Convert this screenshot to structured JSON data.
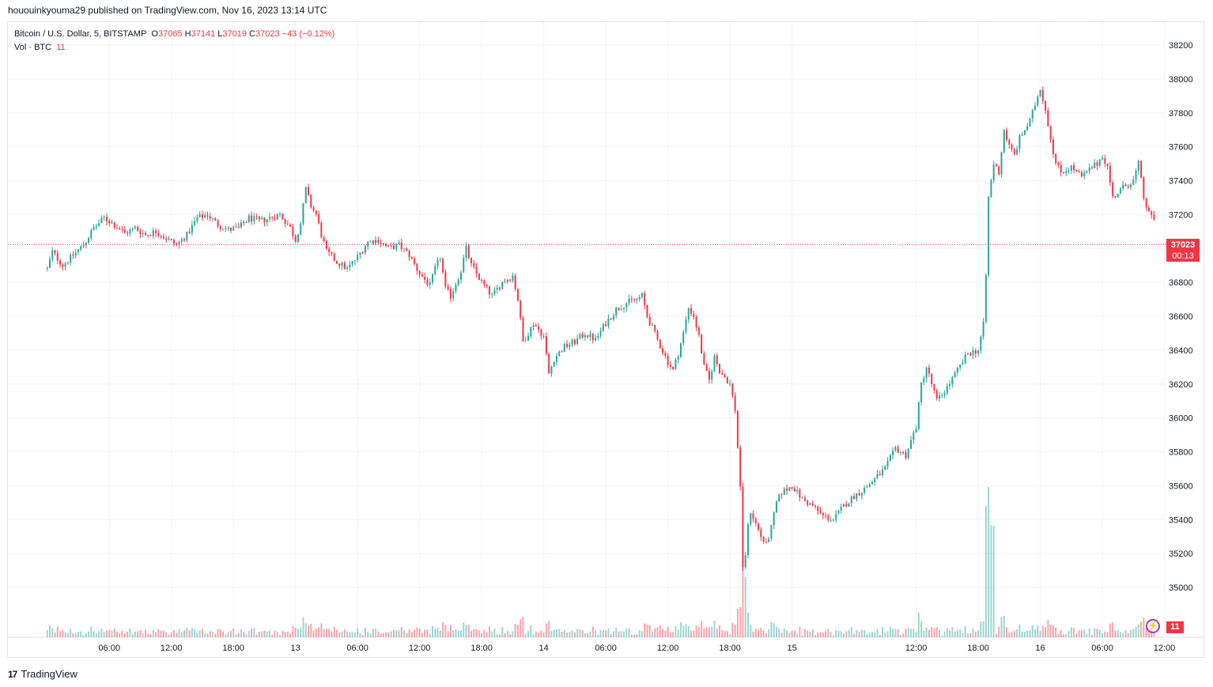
{
  "header": {
    "publisher": "hououinkyouma29 published on TradingView.com, Nov 16, 2023 13:14 UTC"
  },
  "legend": {
    "symbol": "Bitcoin / U.S. Dollar, 5, BITSTAMP",
    "o_label": "O",
    "o_value": "37065",
    "h_label": "H",
    "h_value": "37141",
    "l_label": "L",
    "l_value": "37019",
    "c_label": "C",
    "c_value": "37023",
    "change": "−43 (−0.12%)",
    "vol_label": "Vol · BTC",
    "vol_value": "11"
  },
  "last_price": {
    "price": "37023",
    "countdown": "00:13",
    "vol": "11"
  },
  "brand": {
    "name": "TradingView",
    "logo": "17"
  },
  "colors": {
    "up": "#26a69a",
    "down": "#f23645",
    "grid": "#f0f3fa",
    "axis": "#e0e3eb"
  },
  "chart_data": {
    "type": "candlestick",
    "symbol": "BTCUSD",
    "exchange": "BITSTAMP",
    "interval_minutes": 5,
    "ylim": [
      34700,
      38300
    ],
    "y_ticks": [
      35000,
      35200,
      35400,
      35600,
      35800,
      36000,
      36200,
      36400,
      36600,
      36800,
      37000,
      37200,
      37400,
      37600,
      37800,
      38000,
      38200
    ],
    "y_tick_labels": [
      "35000",
      "35200",
      "35400",
      "35600",
      "35800",
      "36000",
      "36200",
      "36400",
      "36600",
      "36800",
      "37000",
      "37200",
      "37400",
      "37600",
      "37800",
      "38000",
      "38200"
    ],
    "x_ticks": [
      {
        "label": "06:00",
        "hours": 6
      },
      {
        "label": "12:00",
        "hours": 12
      },
      {
        "label": "18:00",
        "hours": 18
      },
      {
        "label": "13",
        "hours": 24
      },
      {
        "label": "06:00",
        "hours": 30
      },
      {
        "label": "12:00",
        "hours": 36
      },
      {
        "label": "18:00",
        "hours": 42
      },
      {
        "label": "14",
        "hours": 48
      },
      {
        "label": "06:00",
        "hours": 54
      },
      {
        "label": "12:00",
        "hours": 60
      },
      {
        "label": "18:00",
        "hours": 66
      },
      {
        "label": "15",
        "hours": 72
      },
      {
        "label": "12:00",
        "hours": 84
      },
      {
        "label": "18:00",
        "hours": 90
      },
      {
        "label": "16",
        "hours": 96
      },
      {
        "label": "06:00",
        "hours": 102
      },
      {
        "label": "12:00",
        "hours": 108
      }
    ],
    "price_path": [
      [
        0.0,
        36880
      ],
      [
        0.5,
        36980
      ],
      [
        1.5,
        36900
      ],
      [
        2.5,
        36960
      ],
      [
        3.5,
        37020
      ],
      [
        4.5,
        37120
      ],
      [
        5.5,
        37180
      ],
      [
        6.5,
        37140
      ],
      [
        7.5,
        37090
      ],
      [
        8.5,
        37120
      ],
      [
        9.5,
        37080
      ],
      [
        10.5,
        37100
      ],
      [
        11.5,
        37060
      ],
      [
        12.5,
        37020
      ],
      [
        13.5,
        37080
      ],
      [
        14.5,
        37180
      ],
      [
        15.5,
        37200
      ],
      [
        16.5,
        37140
      ],
      [
        17.5,
        37110
      ],
      [
        18.5,
        37120
      ],
      [
        19.5,
        37180
      ],
      [
        20.5,
        37160
      ],
      [
        21.5,
        37180
      ],
      [
        22.5,
        37200
      ],
      [
        23.5,
        37120
      ],
      [
        24.0,
        37050
      ],
      [
        24.5,
        37150
      ],
      [
        25.0,
        37350
      ],
      [
        25.5,
        37250
      ],
      [
        26.0,
        37200
      ],
      [
        26.5,
        37080
      ],
      [
        27.0,
        36980
      ],
      [
        28.0,
        36920
      ],
      [
        29.0,
        36880
      ],
      [
        30.0,
        36950
      ],
      [
        31.0,
        37040
      ],
      [
        32.0,
        37050
      ],
      [
        33.0,
        37000
      ],
      [
        34.0,
        37020
      ],
      [
        35.0,
        36960
      ],
      [
        36.0,
        36850
      ],
      [
        37.0,
        36780
      ],
      [
        37.5,
        36880
      ],
      [
        38.0,
        36950
      ],
      [
        38.5,
        36760
      ],
      [
        39.0,
        36720
      ],
      [
        40.0,
        36870
      ],
      [
        40.5,
        37000
      ],
      [
        41.0,
        36900
      ],
      [
        42.0,
        36800
      ],
      [
        43.0,
        36720
      ],
      [
        44.0,
        36800
      ],
      [
        45.0,
        36840
      ],
      [
        45.5,
        36700
      ],
      [
        46.0,
        36450
      ],
      [
        46.5,
        36500
      ],
      [
        47.0,
        36560
      ],
      [
        48.0,
        36480
      ],
      [
        48.5,
        36260
      ],
      [
        49.0,
        36350
      ],
      [
        50.0,
        36420
      ],
      [
        51.0,
        36450
      ],
      [
        52.0,
        36500
      ],
      [
        53.0,
        36460
      ],
      [
        54.0,
        36560
      ],
      [
        55.0,
        36640
      ],
      [
        56.0,
        36680
      ],
      [
        57.0,
        36700
      ],
      [
        57.5,
        36720
      ],
      [
        58.0,
        36600
      ],
      [
        59.0,
        36460
      ],
      [
        60.0,
        36330
      ],
      [
        60.5,
        36280
      ],
      [
        61.0,
        36380
      ],
      [
        61.5,
        36500
      ],
      [
        62.0,
        36650
      ],
      [
        62.5,
        36600
      ],
      [
        63.0,
        36480
      ],
      [
        63.5,
        36300
      ],
      [
        64.0,
        36220
      ],
      [
        64.5,
        36360
      ],
      [
        65.0,
        36280
      ],
      [
        66.0,
        36200
      ],
      [
        66.5,
        36050
      ],
      [
        67.0,
        35600
      ],
      [
        67.3,
        35000
      ],
      [
        67.6,
        35300
      ],
      [
        68.0,
        35450
      ],
      [
        69.0,
        35300
      ],
      [
        69.5,
        35250
      ],
      [
        70.0,
        35350
      ],
      [
        70.5,
        35500
      ],
      [
        71.0,
        35560
      ],
      [
        72.0,
        35600
      ],
      [
        73.0,
        35520
      ],
      [
        74.0,
        35480
      ],
      [
        75.0,
        35420
      ],
      [
        76.0,
        35400
      ],
      [
        77.0,
        35480
      ],
      [
        78.0,
        35540
      ],
      [
        79.0,
        35580
      ],
      [
        80.0,
        35640
      ],
      [
        81.0,
        35700
      ],
      [
        82.0,
        35820
      ],
      [
        83.0,
        35780
      ],
      [
        84.0,
        35950
      ],
      [
        84.5,
        36200
      ],
      [
        85.0,
        36300
      ],
      [
        86.0,
        36100
      ],
      [
        87.0,
        36180
      ],
      [
        88.0,
        36280
      ],
      [
        89.0,
        36380
      ],
      [
        90.0,
        36400
      ],
      [
        90.5,
        36550
      ],
      [
        90.8,
        36900
      ],
      [
        91.0,
        37300
      ],
      [
        91.5,
        37500
      ],
      [
        92.0,
        37450
      ],
      [
        92.5,
        37700
      ],
      [
        93.0,
        37600
      ],
      [
        93.5,
        37550
      ],
      [
        94.0,
        37650
      ],
      [
        95.0,
        37750
      ],
      [
        95.5,
        37850
      ],
      [
        96.0,
        37950
      ],
      [
        96.5,
        37820
      ],
      [
        97.0,
        37650
      ],
      [
        97.5,
        37500
      ],
      [
        98.0,
        37450
      ],
      [
        99.0,
        37480
      ],
      [
        100.0,
        37420
      ],
      [
        101.0,
        37480
      ],
      [
        101.5,
        37500
      ],
      [
        102.0,
        37550
      ],
      [
        102.5,
        37480
      ],
      [
        103.0,
        37300
      ],
      [
        104.0,
        37360
      ],
      [
        105.0,
        37400
      ],
      [
        105.5,
        37500
      ],
      [
        106.0,
        37300
      ],
      [
        106.5,
        37200
      ],
      [
        107.0,
        37180
      ],
      [
        107.2,
        37023
      ]
    ],
    "time_range_hours": [
      -3.8,
      107.5
    ],
    "last_price": 37023,
    "price_line": 37023
  }
}
